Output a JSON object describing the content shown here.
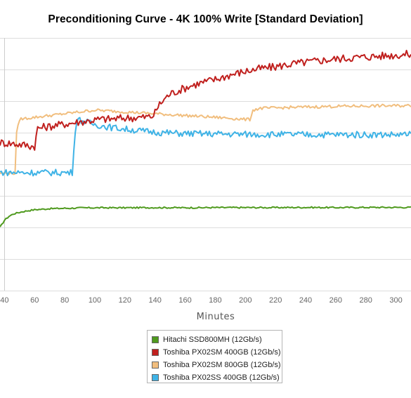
{
  "title": "Preconditioning Curve - 4K 100% Write [Standard Deviation]",
  "chart_data": {
    "type": "line",
    "title": "Preconditioning Curve - 4K 100% Write [Standard Deviation]",
    "xlabel": "Minutes",
    "ylabel": "",
    "x_ticks": [
      40,
      60,
      80,
      100,
      120,
      140,
      160,
      180,
      200,
      220,
      240,
      260,
      280,
      300
    ],
    "xlim": [
      37,
      310
    ],
    "grid": true,
    "legend_position": "bottom",
    "series": [
      {
        "name": "Hitachi SSD800MH (12Gb/s)",
        "color": "#4f9a1e",
        "x": [
          37,
          40,
          43,
          46,
          50,
          55,
          60,
          65,
          70,
          80,
          90,
          100,
          120,
          140,
          160,
          180,
          200,
          220,
          240,
          260,
          280,
          300,
          310
        ],
        "y": [
          0.35,
          0.39,
          0.412,
          0.425,
          0.434,
          0.442,
          0.448,
          0.451,
          0.454,
          0.456,
          0.458,
          0.459,
          0.459,
          0.46,
          0.459,
          0.46,
          0.46,
          0.46,
          0.461,
          0.46,
          0.461,
          0.461,
          0.461
        ]
      },
      {
        "name": "Toshiba PX02SM 400GB (12Gb/s)",
        "color": "#c0201e",
        "x": [
          37,
          45,
          50,
          55,
          58,
          60,
          62,
          66,
          70,
          76,
          82,
          86,
          90,
          96,
          104,
          110,
          118,
          126,
          132,
          138,
          140,
          142,
          146,
          150,
          156,
          162,
          170,
          180,
          190,
          200,
          210,
          220,
          230,
          240,
          250,
          260,
          270,
          280,
          290,
          300,
          310
        ],
        "y": [
          0.82,
          0.815,
          0.81,
          0.805,
          0.8,
          0.8,
          0.9,
          0.905,
          0.91,
          0.918,
          0.925,
          0.93,
          0.935,
          0.94,
          0.95,
          0.95,
          0.955,
          0.958,
          0.96,
          0.965,
          0.985,
          1.02,
          1.06,
          1.09,
          1.11,
          1.13,
          1.15,
          1.17,
          1.195,
          1.215,
          1.23,
          1.24,
          1.255,
          1.265,
          1.275,
          1.283,
          1.29,
          1.295,
          1.3,
          1.305,
          1.31
        ]
      },
      {
        "name": "Toshiba PX02SM 800GB (12Gb/s)",
        "color": "#f1be7e",
        "x": [
          37,
          47,
          48,
          50,
          55,
          60,
          70,
          80,
          90,
          100,
          110,
          120,
          130,
          140,
          150,
          160,
          170,
          180,
          190,
          200,
          203,
          205,
          210,
          220,
          230,
          240,
          250,
          260,
          270,
          280,
          290,
          300,
          310
        ],
        "y": [
          0.65,
          0.65,
          0.87,
          0.95,
          0.955,
          0.96,
          0.97,
          0.98,
          0.99,
          1.0,
          0.995,
          0.99,
          0.985,
          0.98,
          0.975,
          0.97,
          0.965,
          0.96,
          0.955,
          0.948,
          0.948,
          1.0,
          1.01,
          1.012,
          1.015,
          1.017,
          1.019,
          1.021,
          1.022,
          1.023,
          1.024,
          1.024,
          1.025
        ]
      },
      {
        "name": "Toshiba PX02SS 400GB (12Gb/s)",
        "color": "#3fb3e6",
        "x": [
          37,
          50,
          60,
          70,
          80,
          85,
          86,
          88,
          90,
          92,
          96,
          100,
          110,
          120,
          130,
          140,
          150,
          160,
          180,
          200,
          220,
          240,
          260,
          280,
          300,
          310
        ],
        "y": [
          0.655,
          0.654,
          0.654,
          0.654,
          0.654,
          0.655,
          0.79,
          0.95,
          0.945,
          0.94,
          0.93,
          0.92,
          0.905,
          0.895,
          0.885,
          0.878,
          0.873,
          0.87,
          0.868,
          0.866,
          0.865,
          0.864,
          0.864,
          0.864,
          0.864,
          0.864
        ]
      }
    ]
  }
}
